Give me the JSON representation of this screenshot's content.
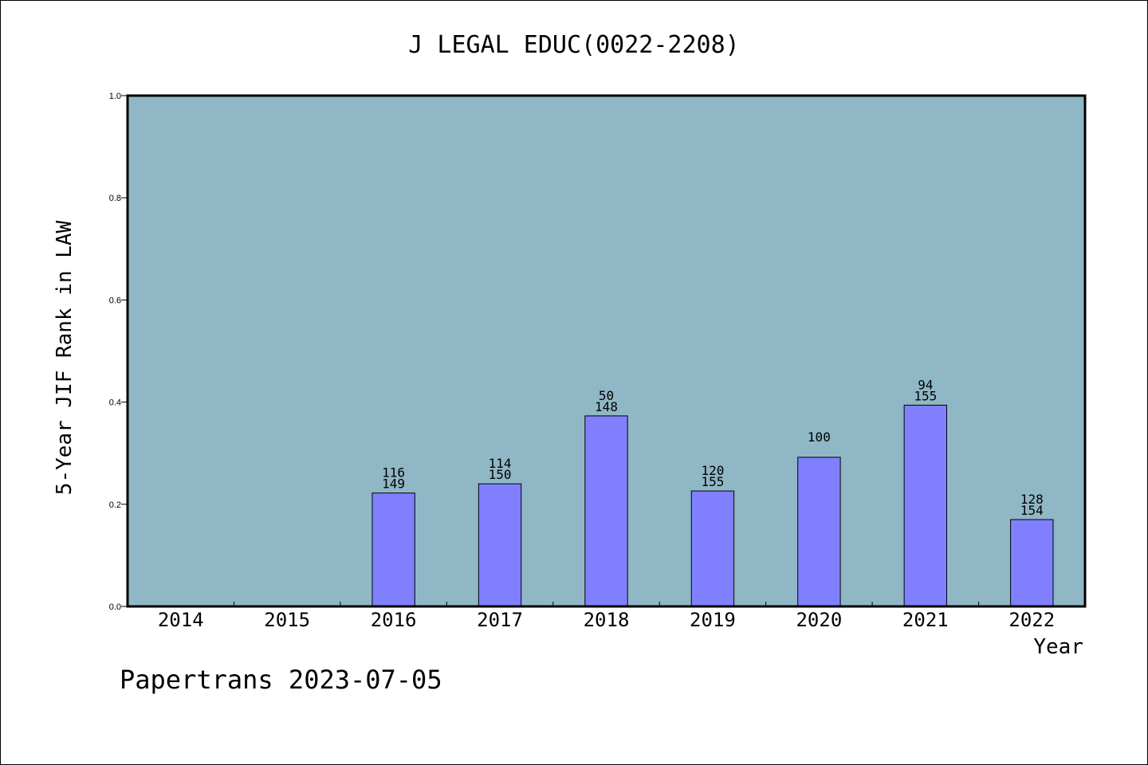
{
  "chart_data": {
    "type": "bar",
    "title": "J LEGAL EDUC(0022-2208)",
    "xlabel": "Year",
    "ylabel": "5-Year JIF Rank in LAW",
    "ylim": [
      0,
      1.0
    ],
    "yticks": [
      "0.0",
      "0.2",
      "0.4",
      "0.6",
      "0.8",
      "1.0"
    ],
    "categories": [
      "2014",
      "2015",
      "2016",
      "2017",
      "2018",
      "2019",
      "2020",
      "2021",
      "2022"
    ],
    "values": [
      null,
      null,
      0.222,
      0.24,
      0.373,
      0.226,
      0.292,
      0.394,
      0.17
    ],
    "bar_labels": [
      {
        "rank": "",
        "total": ""
      },
      {
        "rank": "",
        "total": ""
      },
      {
        "rank": "116",
        "total": "149"
      },
      {
        "rank": "114",
        "total": "150"
      },
      {
        "rank": "50",
        "total": "148"
      },
      {
        "rank": "120",
        "total": "155"
      },
      {
        "rank": "100",
        "total": ""
      },
      {
        "rank": "94",
        "total": "155"
      },
      {
        "rank": "128",
        "total": "154"
      }
    ],
    "grid": false,
    "colors": {
      "plot_background": "#8fb7c6",
      "bar_fill": "#8080ff",
      "bar_stroke": "#000000"
    }
  },
  "footer": "Papertrans 2023-07-05"
}
